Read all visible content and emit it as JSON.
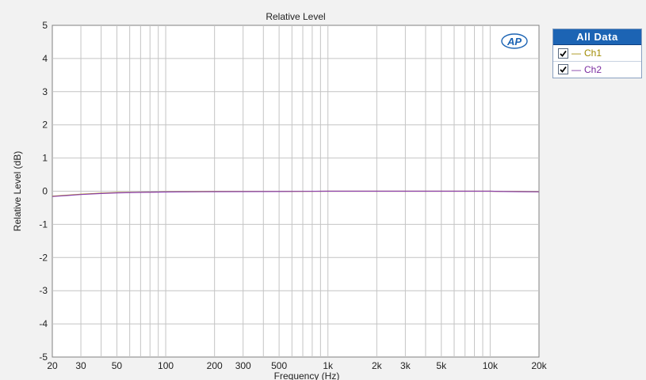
{
  "chart_data": {
    "type": "line",
    "title": "Relative Level",
    "xlabel": "Frequency (Hz)",
    "ylabel": "Relative Level (dB)",
    "xscale": "log",
    "xlim": [
      20,
      20000
    ],
    "ylim": [
      -5,
      5
    ],
    "y_ticks": [
      5,
      4,
      3,
      2,
      1,
      0,
      -1,
      -2,
      -3,
      -4,
      -5
    ],
    "y_tick_labels": [
      "5",
      "4",
      "3",
      "2",
      "1",
      "0",
      "-1",
      "-2",
      "-3",
      "-4",
      "-5"
    ],
    "x_ticks": [
      20,
      30,
      50,
      100,
      200,
      300,
      500,
      1000,
      2000,
      3000,
      5000,
      10000,
      20000
    ],
    "x_tick_labels": [
      "20",
      "30",
      "50",
      "100",
      "200",
      "300",
      "500",
      "1k",
      "2k",
      "3k",
      "5k",
      "10k",
      "20k"
    ],
    "grid": true,
    "legend_position": "right-top",
    "series": [
      {
        "name": "Ch1",
        "color": "#b8a000",
        "x": [
          20,
          25,
          30,
          40,
          50,
          70,
          100,
          200,
          500,
          1000,
          2000,
          5000,
          10000,
          12000,
          15000,
          20000
        ],
        "y": [
          -0.15,
          -0.12,
          -0.09,
          -0.06,
          -0.04,
          -0.03,
          -0.02,
          -0.01,
          -0.01,
          0.0,
          0.0,
          0.0,
          0.0,
          -0.01,
          -0.01,
          -0.02
        ]
      },
      {
        "name": "Ch2",
        "color": "#8a3db0",
        "x": [
          20,
          25,
          30,
          40,
          50,
          70,
          100,
          200,
          500,
          1000,
          2000,
          5000,
          10000,
          12000,
          15000,
          20000
        ],
        "y": [
          -0.16,
          -0.13,
          -0.1,
          -0.07,
          -0.05,
          -0.035,
          -0.025,
          -0.015,
          -0.01,
          0.0,
          0.0,
          0.0,
          0.0,
          -0.01,
          -0.015,
          -0.02
        ]
      }
    ]
  },
  "legend": {
    "header": "All Data",
    "items": [
      {
        "label": "Ch1",
        "dash": "—",
        "color": "#a08a00",
        "checked": true
      },
      {
        "label": "Ch2",
        "dash": "—",
        "color": "#7a2da0",
        "checked": true
      }
    ]
  },
  "logo": {
    "text": "AP",
    "icon": "ap-logo-icon"
  },
  "colors": {
    "background": "#f2f2f2",
    "plot_background": "#ffffff",
    "grid": "#c8c8c8",
    "legend_header": "#1c64b4"
  }
}
